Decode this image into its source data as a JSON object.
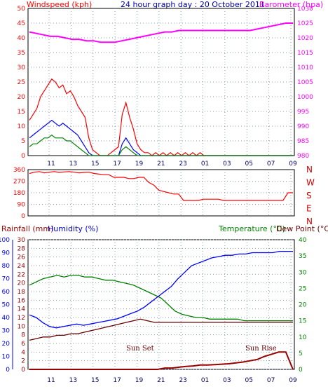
{
  "header": {
    "title": "24 hour graph day : 20 October 2011",
    "windspeed_label": "Windspeed (kph)",
    "barometer_label": "Barometer (hpa)"
  },
  "bottom": {
    "rainfall_label": "Rainfall (mm)",
    "humidity_label": "Humidity (%)",
    "temperature_label": "Temperature (°C)",
    "dewpoint_label": "Dew Point (°C)",
    "sunset_label": "Sun Set",
    "sunrise_label": "Sun Rise"
  },
  "compass": [
    "N",
    "W",
    "S",
    "E",
    "N"
  ],
  "colors": {
    "wind_gust": "#ff0000",
    "wind_avg": "#0000ff",
    "wind_low": "#008000",
    "barometer": "#ff00ff",
    "direction": "#ff0000",
    "humidity": "#0000ff",
    "temperature": "#008000",
    "dewpoint": "#660000",
    "rain": "#990000",
    "grid": "#0000aa"
  },
  "chart_data": [
    {
      "id": "wind_barometer",
      "type": "line",
      "x_ticks": [
        "11",
        "13",
        "15",
        "17",
        "19",
        "21",
        "23",
        "01",
        "03",
        "05",
        "07",
        "09"
      ],
      "y_left_ticks": [
        "0",
        "5",
        "10",
        "15",
        "20",
        "25",
        "30",
        "35",
        "40",
        "45",
        "50"
      ],
      "y_left_lim": [
        0,
        50
      ],
      "y_right_ticks": [
        "980",
        "985",
        "990",
        "995",
        "1000",
        "1005",
        "1010",
        "1015",
        "1020",
        "1025",
        "1030"
      ],
      "y_right_lim": [
        980,
        1030
      ],
      "series": [
        {
          "key": "gust",
          "values": [
            12,
            14,
            16,
            20,
            22,
            24,
            26,
            25,
            23,
            24,
            21,
            22,
            20,
            17,
            15,
            13,
            6,
            2,
            1,
            0,
            0,
            0,
            1,
            2,
            3,
            14,
            18,
            13,
            9,
            4,
            2,
            1,
            1,
            0,
            1,
            0,
            1,
            0,
            1,
            0,
            1,
            0,
            1,
            0,
            1,
            0,
            1,
            0,
            0,
            0,
            0,
            0,
            0,
            0,
            0,
            0,
            0,
            0,
            0,
            0,
            0,
            0,
            0,
            0,
            0,
            0,
            0,
            0,
            0,
            0,
            0,
            0
          ]
        },
        {
          "key": "avg",
          "values": [
            6,
            7,
            8,
            9,
            10,
            11,
            12,
            11,
            10,
            11,
            10,
            9,
            8,
            7,
            5,
            3,
            1,
            0,
            0,
            0,
            0,
            0,
            0,
            0,
            0,
            4,
            6,
            4,
            2,
            1,
            0,
            0,
            0,
            0,
            0,
            0,
            0,
            0,
            0,
            0,
            0,
            0,
            0,
            0,
            0,
            0,
            0,
            0,
            0,
            0,
            0,
            0,
            0,
            0,
            0,
            0,
            0,
            0,
            0,
            0,
            0,
            0,
            0,
            0,
            0,
            0,
            0,
            0,
            0,
            0,
            0,
            0
          ]
        },
        {
          "key": "low",
          "values": [
            3,
            4,
            4,
            5,
            6,
            6,
            7,
            6,
            6,
            6,
            5,
            5,
            4,
            3,
            2,
            1,
            0,
            0,
            0,
            0,
            0,
            0,
            0,
            0,
            0,
            2,
            3,
            2,
            1,
            0,
            0,
            0,
            0,
            0,
            0,
            0,
            0,
            0,
            0,
            0,
            0,
            0,
            0,
            0,
            0,
            0,
            0,
            0,
            0,
            0,
            0,
            0,
            0,
            0,
            0,
            0,
            0,
            0,
            0,
            0,
            0,
            0,
            0,
            0,
            0,
            0,
            0,
            0,
            0,
            0,
            0,
            0
          ]
        },
        {
          "key": "barometer",
          "values": [
            1022,
            1021.5,
            1021,
            1020.5,
            1020.5,
            1020,
            1019.5,
            1019.5,
            1019,
            1019,
            1018.5,
            1018.5,
            1018.5,
            1019,
            1019.5,
            1020,
            1020.5,
            1021,
            1021.5,
            1022,
            1022,
            1022.5,
            1022.5,
            1022.5,
            1022.5,
            1022.5,
            1022.5,
            1022.5,
            1022.5,
            1022.5,
            1022.5,
            1022.5,
            1023,
            1023.5,
            1024,
            1024.5,
            1025,
            1025
          ]
        }
      ]
    },
    {
      "id": "wind_direction",
      "type": "line",
      "y_ticks": [
        "360",
        "270",
        "180",
        "90",
        "0"
      ],
      "y_lim": [
        0,
        360
      ],
      "series": [
        {
          "key": "direction",
          "values": [
            330,
            340,
            345,
            335,
            340,
            345,
            338,
            342,
            345,
            340,
            335,
            338,
            340,
            330,
            325,
            320,
            320,
            300,
            300,
            300,
            290,
            290,
            300,
            300,
            260,
            240,
            200,
            190,
            180,
            170,
            170,
            120,
            120,
            120,
            120,
            130,
            130,
            130,
            130,
            120,
            120,
            120,
            120,
            120,
            120,
            120,
            120,
            120,
            120,
            120,
            120,
            120,
            180,
            180
          ]
        }
      ]
    },
    {
      "id": "temp_humidity_rain",
      "type": "line",
      "y_left_humidity_ticks": [
        "0",
        "10",
        "20",
        "30",
        "40",
        "50",
        "60",
        "70",
        "80",
        "90",
        "100"
      ],
      "y_left_humidity_lim": [
        0,
        100
      ],
      "y_left_rain_ticks": [
        "0",
        "2",
        "4",
        "6",
        "8",
        "10",
        "12",
        "14",
        "16",
        "18",
        "20",
        "22",
        "24",
        "26",
        "28",
        "30"
      ],
      "y_left_rain_lim": [
        0,
        30
      ],
      "y_right_ticks": [
        "0",
        "5",
        "10",
        "15",
        "20",
        "25",
        "30",
        "35",
        "40"
      ],
      "y_right_lim": [
        0,
        40
      ],
      "series": [
        {
          "key": "temperature",
          "values": [
            26,
            27,
            28,
            28.5,
            29,
            28.5,
            29,
            29,
            28.5,
            28.5,
            28,
            27.5,
            27.5,
            27,
            26.5,
            26,
            25,
            24,
            23,
            22,
            20,
            18,
            17,
            16.5,
            16,
            16,
            15.5,
            15.5,
            15.5,
            15.5,
            15.5,
            15,
            15,
            15,
            15,
            15,
            15,
            15,
            15
          ]
        },
        {
          "key": "humidity",
          "values": [
            42,
            40,
            36,
            33,
            32,
            33,
            34,
            35,
            34,
            35,
            36,
            37,
            38,
            39,
            41,
            43,
            45,
            48,
            52,
            56,
            60,
            64,
            70,
            75,
            80,
            82,
            84,
            86,
            87,
            88,
            88,
            89,
            89,
            90,
            90,
            90,
            90,
            91,
            91,
            91
          ]
        },
        {
          "key": "dewpoint",
          "values": [
            9,
            9.5,
            10,
            10,
            10.5,
            10.5,
            11,
            11,
            11.5,
            12,
            12.5,
            13,
            13.5,
            14,
            14.5,
            15,
            15.5,
            15,
            14.5,
            14.5,
            14.5,
            14.5,
            14.5,
            14.5,
            14.5,
            14.5,
            14.5,
            14.5,
            14.5,
            14.5,
            14.5,
            14.5,
            14.5,
            14.5,
            14.5,
            14.5,
            14.5,
            14.5,
            14.5
          ]
        },
        {
          "key": "rain",
          "values": [
            0,
            0,
            0,
            0,
            0,
            0,
            0,
            0,
            0,
            0,
            0,
            0,
            0,
            0,
            0,
            0,
            0,
            0,
            0,
            0.3,
            0.3,
            0.5,
            0.7,
            0.8,
            1.0,
            1.0,
            1.1,
            1.2,
            1.3,
            1.5,
            1.7,
            2.0,
            2.3,
            3.0,
            3.5,
            4.0,
            4.0,
            0
          ]
        }
      ]
    }
  ]
}
